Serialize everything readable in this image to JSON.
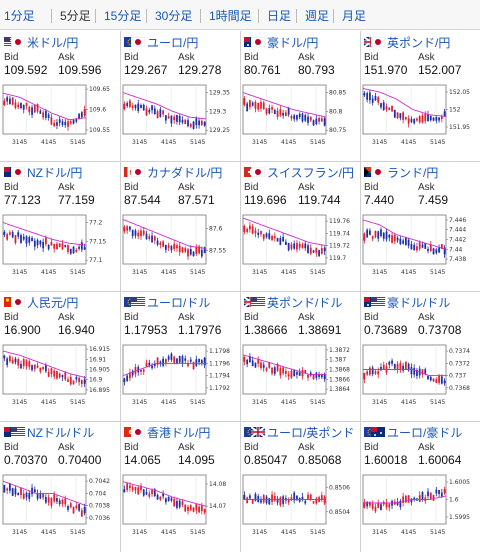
{
  "tabs": [
    {
      "label": "1分足",
      "active": false
    },
    {
      "label": "5分足",
      "active": true
    },
    {
      "label": "15分足",
      "active": false
    },
    {
      "label": "30分足",
      "active": false
    },
    {
      "label": "1時間足",
      "active": false
    },
    {
      "label": "日足",
      "active": false
    },
    {
      "label": "週足",
      "active": false
    },
    {
      "label": "月足",
      "active": false
    }
  ],
  "labels": {
    "bid": "Bid",
    "ask": "Ask"
  },
  "time_labels": [
    "3145",
    "4145",
    "5145"
  ],
  "colors": {
    "up": "#e0202e",
    "down": "#1f2fa8",
    "ma": "#d02cd0",
    "link": "#1a56b8"
  },
  "pairs": [
    {
      "name": "米ドル/円",
      "flags": [
        "us-flag-icon",
        "jp-flag-icon"
      ],
      "bid": "109.592",
      "ask": "109.596",
      "chart_data": {
        "type": "candlestick",
        "yticks": [
          "109.65",
          "109.6",
          "109.55"
        ],
        "ylim": [
          109.54,
          109.66
        ],
        "trend": [
          109.62,
          109.61,
          109.6,
          109.57,
          109.56,
          109.6
        ],
        "ma": [
          109.64,
          109.63,
          109.61,
          109.59,
          109.575,
          109.58
        ]
      }
    },
    {
      "name": "ユーロ/円",
      "flags": [
        "eu-flag-icon",
        "jp-flag-icon"
      ],
      "bid": "129.267",
      "ask": "129.278",
      "chart_data": {
        "type": "candlestick",
        "yticks": [
          "129.35",
          "129.3",
          "129.25"
        ],
        "ylim": [
          129.24,
          129.37
        ],
        "trend": [
          129.32,
          129.31,
          129.3,
          129.28,
          129.265,
          129.27
        ],
        "ma": [
          129.35,
          129.335,
          129.32,
          129.3,
          129.285,
          129.28
        ]
      }
    },
    {
      "name": "豪ドル/円",
      "flags": [
        "au-flag-icon",
        "jp-flag-icon"
      ],
      "bid": "80.761",
      "ask": "80.793",
      "chart_data": {
        "type": "candlestick",
        "yticks": [
          "80.85",
          "80.8",
          "80.75"
        ],
        "ylim": [
          80.74,
          80.87
        ],
        "trend": [
          80.82,
          80.81,
          80.8,
          80.79,
          80.775,
          80.77
        ],
        "ma": [
          80.85,
          80.835,
          80.82,
          80.805,
          80.795,
          80.785
        ]
      }
    },
    {
      "name": "英ポンド/円",
      "flags": [
        "uk-flag-icon",
        "jp-flag-icon"
      ],
      "bid": "151.970",
      "ask": "152.007",
      "chart_data": {
        "type": "candlestick",
        "yticks": [
          "152.05",
          "152",
          "151.95"
        ],
        "ylim": [
          151.93,
          152.07
        ],
        "trend": [
          152.04,
          152.02,
          151.99,
          151.96,
          151.975,
          151.98
        ],
        "ma": [
          152.06,
          152.05,
          152.03,
          152.0,
          151.985,
          151.98
        ]
      }
    },
    {
      "name": "NZドル/円",
      "flags": [
        "nz-flag-icon",
        "jp-flag-icon"
      ],
      "bid": "77.123",
      "ask": "77.159",
      "chart_data": {
        "type": "candlestick",
        "yticks": [
          "77.2",
          "77.15",
          "77.1"
        ],
        "ylim": [
          77.09,
          77.22
        ],
        "trend": [
          77.17,
          77.16,
          77.15,
          77.14,
          77.13,
          77.135
        ],
        "ma": [
          77.2,
          77.185,
          77.17,
          77.155,
          77.145,
          77.14
        ]
      }
    },
    {
      "name": "カナダドル/円",
      "flags": [
        "ca-flag-icon",
        "jp-flag-icon"
      ],
      "bid": "87.544",
      "ask": "87.571",
      "chart_data": {
        "type": "candlestick",
        "yticks": [
          "87.6",
          "87.55"
        ],
        "ylim": [
          87.52,
          87.63
        ],
        "trend": [
          87.6,
          87.59,
          87.57,
          87.555,
          87.545,
          87.55
        ],
        "ma": [
          87.62,
          87.605,
          87.59,
          87.575,
          87.56,
          87.555
        ]
      }
    },
    {
      "name": "スイスフラン/円",
      "flags": [
        "ch-flag-icon",
        "jp-flag-icon"
      ],
      "bid": "119.696",
      "ask": "119.744",
      "chart_data": {
        "type": "candlestick",
        "yticks": [
          "119.76",
          "119.74",
          "119.72",
          "119.7"
        ],
        "ylim": [
          119.69,
          119.77
        ],
        "trend": [
          119.75,
          119.74,
          119.73,
          119.72,
          119.715,
          119.71
        ],
        "ma": [
          119.765,
          119.755,
          119.745,
          119.735,
          119.725,
          119.72
        ]
      }
    },
    {
      "name": "ランド/円",
      "flags": [
        "za-flag-icon",
        "jp-flag-icon"
      ],
      "bid": "7.440",
      "ask": "7.459",
      "chart_data": {
        "type": "candlestick",
        "yticks": [
          "7.446",
          "7.444",
          "7.442",
          "7.44",
          "7.438"
        ],
        "ylim": [
          7.437,
          7.447
        ],
        "trend": [
          7.443,
          7.443,
          7.442,
          7.441,
          7.44,
          7.44
        ],
        "ma": [
          7.446,
          7.445,
          7.443,
          7.442,
          7.441,
          7.44
        ]
      }
    },
    {
      "name": "人民元/円",
      "flags": [
        "cn-flag-icon",
        "jp-flag-icon"
      ],
      "bid": "16.900",
      "ask": "16.940",
      "chart_data": {
        "type": "candlestick",
        "yticks": [
          "16.915",
          "16.91",
          "16.905",
          "16.9",
          "16.895"
        ],
        "ylim": [
          16.893,
          16.917
        ],
        "trend": [
          16.91,
          16.908,
          16.906,
          16.903,
          16.9,
          16.899
        ],
        "ma": [
          16.914,
          16.912,
          16.909,
          16.906,
          16.903,
          16.901
        ]
      }
    },
    {
      "name": "ユーロ/ドル",
      "flags": [
        "eu-flag-icon",
        "us-flag-icon"
      ],
      "bid": "1.17953",
      "ask": "1.17976",
      "chart_data": {
        "type": "candlestick",
        "yticks": [
          "1.1798",
          "1.1796",
          "1.1794",
          "1.1792"
        ],
        "ylim": [
          1.1791,
          1.1799
        ],
        "trend": [
          1.1793,
          1.1795,
          1.1796,
          1.1797,
          1.1796,
          1.1796
        ],
        "ma": [
          1.1794,
          1.1795,
          1.1796,
          1.1796,
          1.1796,
          1.1796
        ]
      }
    },
    {
      "name": "英ポンド/ドル",
      "flags": [
        "uk-flag-icon",
        "us-flag-icon"
      ],
      "bid": "1.38666",
      "ask": "1.38691",
      "chart_data": {
        "type": "candlestick",
        "yticks": [
          "1.3872",
          "1.387",
          "1.3868",
          "1.3866",
          "1.3864"
        ],
        "ylim": [
          1.3863,
          1.3873
        ],
        "trend": [
          1.387,
          1.3869,
          1.3868,
          1.3867,
          1.3867,
          1.3867
        ],
        "ma": [
          1.3871,
          1.387,
          1.3869,
          1.3868,
          1.3867,
          1.3867
        ]
      }
    },
    {
      "name": "豪ドル/ドル",
      "flags": [
        "au-flag-icon",
        "us-flag-icon"
      ],
      "bid": "0.73689",
      "ask": "0.73708",
      "chart_data": {
        "type": "candlestick",
        "yticks": [
          "0.7374",
          "0.7372",
          "0.737",
          "0.7368"
        ],
        "ylim": [
          0.7367,
          0.7375
        ],
        "trend": [
          0.737,
          0.7371,
          0.7372,
          0.7371,
          0.737,
          0.7369
        ],
        "ma": [
          0.7371,
          0.7371,
          0.7371,
          0.7371,
          0.737,
          0.737
        ]
      }
    },
    {
      "name": "NZドル/ドル",
      "flags": [
        "nz-flag-icon",
        "us-flag-icon"
      ],
      "bid": "0.70370",
      "ask": "0.70400",
      "chart_data": {
        "type": "candlestick",
        "yticks": [
          "0.7042",
          "0.704",
          "0.7038",
          "0.7036"
        ],
        "ylim": [
          0.7035,
          0.7043
        ],
        "trend": [
          0.7041,
          0.704,
          0.704,
          0.7039,
          0.7038,
          0.7037
        ],
        "ma": [
          0.7042,
          0.7041,
          0.704,
          0.704,
          0.7039,
          0.7038
        ]
      }
    },
    {
      "name": "香港ドル/円",
      "flags": [
        "hk-flag-icon",
        "jp-flag-icon"
      ],
      "bid": "14.065",
      "ask": "14.095",
      "chart_data": {
        "type": "candlestick",
        "yticks": [
          "14.08",
          "14.07"
        ],
        "ylim": [
          14.062,
          14.084
        ],
        "trend": [
          14.078,
          14.077,
          14.075,
          14.072,
          14.07,
          14.069
        ],
        "ma": [
          14.081,
          14.079,
          14.077,
          14.074,
          14.072,
          14.07
        ]
      }
    },
    {
      "name": "ユーロ/英ポンド",
      "flags": [
        "eu-flag-icon",
        "uk-flag-icon"
      ],
      "bid": "0.85047",
      "ask": "0.85068",
      "chart_data": {
        "type": "candlestick",
        "yticks": [
          "0.8506",
          "0.8504"
        ],
        "ylim": [
          0.8503,
          0.8507
        ],
        "trend": [
          0.8505,
          0.8505,
          0.8505,
          0.8505,
          0.8505,
          0.8505
        ],
        "ma": [
          0.8505,
          0.8505,
          0.8505,
          0.8505,
          0.8505,
          0.8505
        ]
      }
    },
    {
      "name": "ユーロ/豪ドル",
      "flags": [
        "eu-flag-icon",
        "au-flag-icon"
      ],
      "bid": "1.60018",
      "ask": "1.60064",
      "chart_data": {
        "type": "candlestick",
        "yticks": [
          "1.6005",
          "1.6",
          "1.5995"
        ],
        "ylim": [
          1.5993,
          1.6007
        ],
        "trend": [
          1.5998,
          1.5998,
          1.5999,
          1.6,
          1.6001,
          1.6002
        ],
        "ma": [
          1.5999,
          1.5999,
          1.5999,
          1.6,
          1.6,
          1.6001
        ]
      }
    }
  ]
}
